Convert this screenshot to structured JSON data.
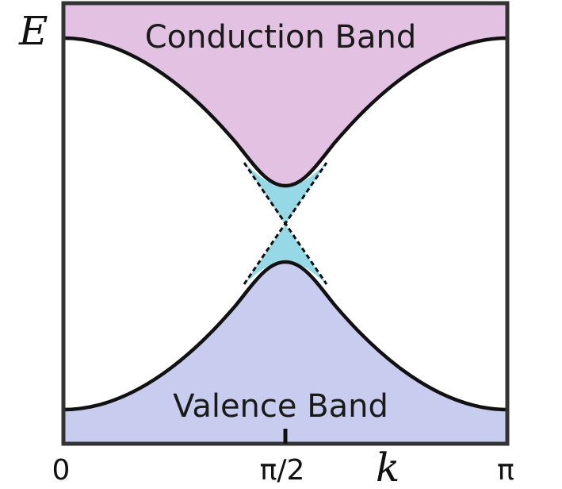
{
  "diagram": {
    "conduction_band": {
      "label": "Conduction Band",
      "color": "#e2c1e3"
    },
    "valence_band": {
      "label": "Valence Band",
      "color": "#c8cdf0"
    },
    "dirac_cone": {
      "color": "#96d8e6"
    },
    "curve_color": "#111111",
    "axes": {
      "y_symbol": "E",
      "x_symbol": "k",
      "x_ticks": [
        "0",
        "π/2",
        "π"
      ]
    }
  }
}
